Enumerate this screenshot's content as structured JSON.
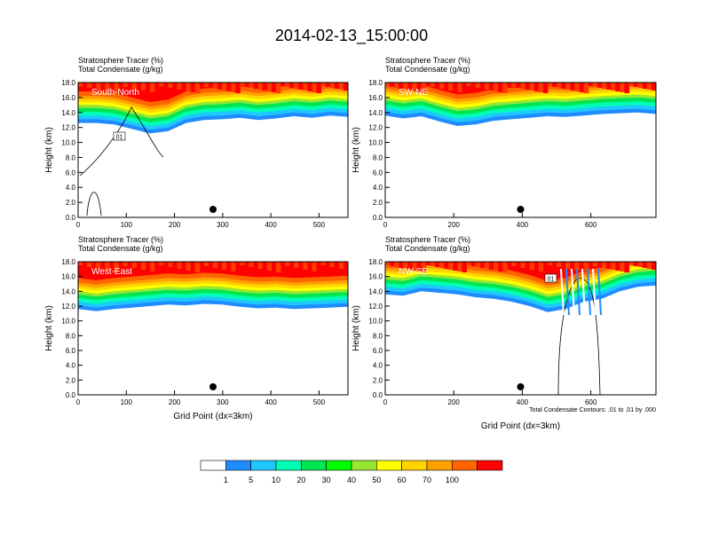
{
  "title": "2014-02-13_15:00:00",
  "colorbar": {
    "colors": [
      "#ffffff",
      "#1e8cff",
      "#1ec8ff",
      "#00ffb4",
      "#00e650",
      "#00ff00",
      "#96e632",
      "#ffff00",
      "#ffd200",
      "#ffa000",
      "#ff6400",
      "#ff0000"
    ],
    "labels": [
      "1",
      "5",
      "10",
      "20",
      "30",
      "40",
      "50",
      "60",
      "70",
      "100"
    ]
  },
  "chart_data": [
    {
      "type": "contour",
      "panel": "South-North",
      "title": "Stratosphere Tracer   (%)",
      "subtitle": "Total Condensate   (g/kg)",
      "xlabel": "",
      "ylabel": "Height (km)",
      "xlim": [
        0,
        560
      ],
      "ylim": [
        0,
        18
      ],
      "xticks": [
        "0",
        "100",
        "200",
        "300",
        "400",
        "500"
      ],
      "yticks": [
        "0.0",
        "2.0",
        "4.0",
        "6.0",
        "8.0",
        "10.0",
        "12.0",
        "14.0",
        "16.0",
        "18.0"
      ],
      "marker_x": 280,
      "contour_label": "01",
      "tracer_base_km": [
        12.6,
        12.6,
        12.4,
        11.8,
        11.2,
        11.5,
        12.6,
        13.0,
        13.1,
        13.3,
        13.0,
        13.2,
        13.5,
        13.3,
        13.6,
        13.4
      ]
    },
    {
      "type": "contour",
      "panel": "SW-NE",
      "title": "Stratosphere Tracer   (%)",
      "subtitle": "Total Condensate   (g/kg)",
      "xlabel": "",
      "ylabel": "Height (km)",
      "xlim": [
        0,
        790
      ],
      "ylim": [
        0,
        18
      ],
      "xticks": [
        "0",
        "200",
        "400",
        "600"
      ],
      "yticks": [
        "0.0",
        "2.0",
        "4.0",
        "6.0",
        "8.0",
        "10.0",
        "12.0",
        "14.0",
        "16.0",
        "18.0"
      ],
      "marker_x": 395,
      "tracer_base_km": [
        13.6,
        13.2,
        13.5,
        12.8,
        12.2,
        12.4,
        12.9,
        13.1,
        13.3,
        13.5,
        13.4,
        13.6,
        13.8,
        13.9,
        14.0,
        13.8
      ]
    },
    {
      "type": "contour",
      "panel": "West-East",
      "title": "Stratosphere Tracer   (%)",
      "subtitle": "Total Condensate   (g/kg)",
      "xlabel": "Grid Point (dx=3km)",
      "ylabel": "Height (km)",
      "xlim": [
        0,
        560
      ],
      "ylim": [
        0,
        18
      ],
      "xticks": [
        "0",
        "100",
        "200",
        "300",
        "400",
        "500"
      ],
      "yticks": [
        "0.0",
        "2.0",
        "4.0",
        "6.0",
        "8.0",
        "10.0",
        "12.0",
        "14.0",
        "16.0",
        "18.0"
      ],
      "marker_x": 280,
      "tracer_base_km": [
        11.6,
        11.3,
        11.6,
        11.8,
        12.0,
        12.2,
        12.1,
        12.3,
        12.2,
        11.9,
        11.7,
        11.8,
        11.6,
        11.7,
        11.8,
        11.9
      ]
    },
    {
      "type": "contour",
      "panel": "NW-SE",
      "title": "Stratosphere Tracer   (%)",
      "subtitle": "Total Condensate   (g/kg)",
      "xlabel": "Grid Point (dx=3km)",
      "ylabel": "Height (km)",
      "xlim": [
        0,
        790
      ],
      "ylim": [
        0,
        18
      ],
      "xticks": [
        "0",
        "200",
        "400",
        "600"
      ],
      "yticks": [
        "0.0",
        "2.0",
        "4.0",
        "6.0",
        "8.0",
        "10.0",
        "12.0",
        "14.0",
        "16.0",
        "18.0"
      ],
      "marker_x": 395,
      "contour_label": "01",
      "contour_note": "Total Condensate Contours: .01 to .01 by .000",
      "tracer_base_km": [
        13.6,
        13.4,
        14.0,
        13.8,
        13.6,
        13.2,
        13.0,
        12.6,
        12.0,
        11.2,
        11.6,
        12.6,
        13.0,
        14.0,
        14.6,
        14.8
      ]
    }
  ]
}
